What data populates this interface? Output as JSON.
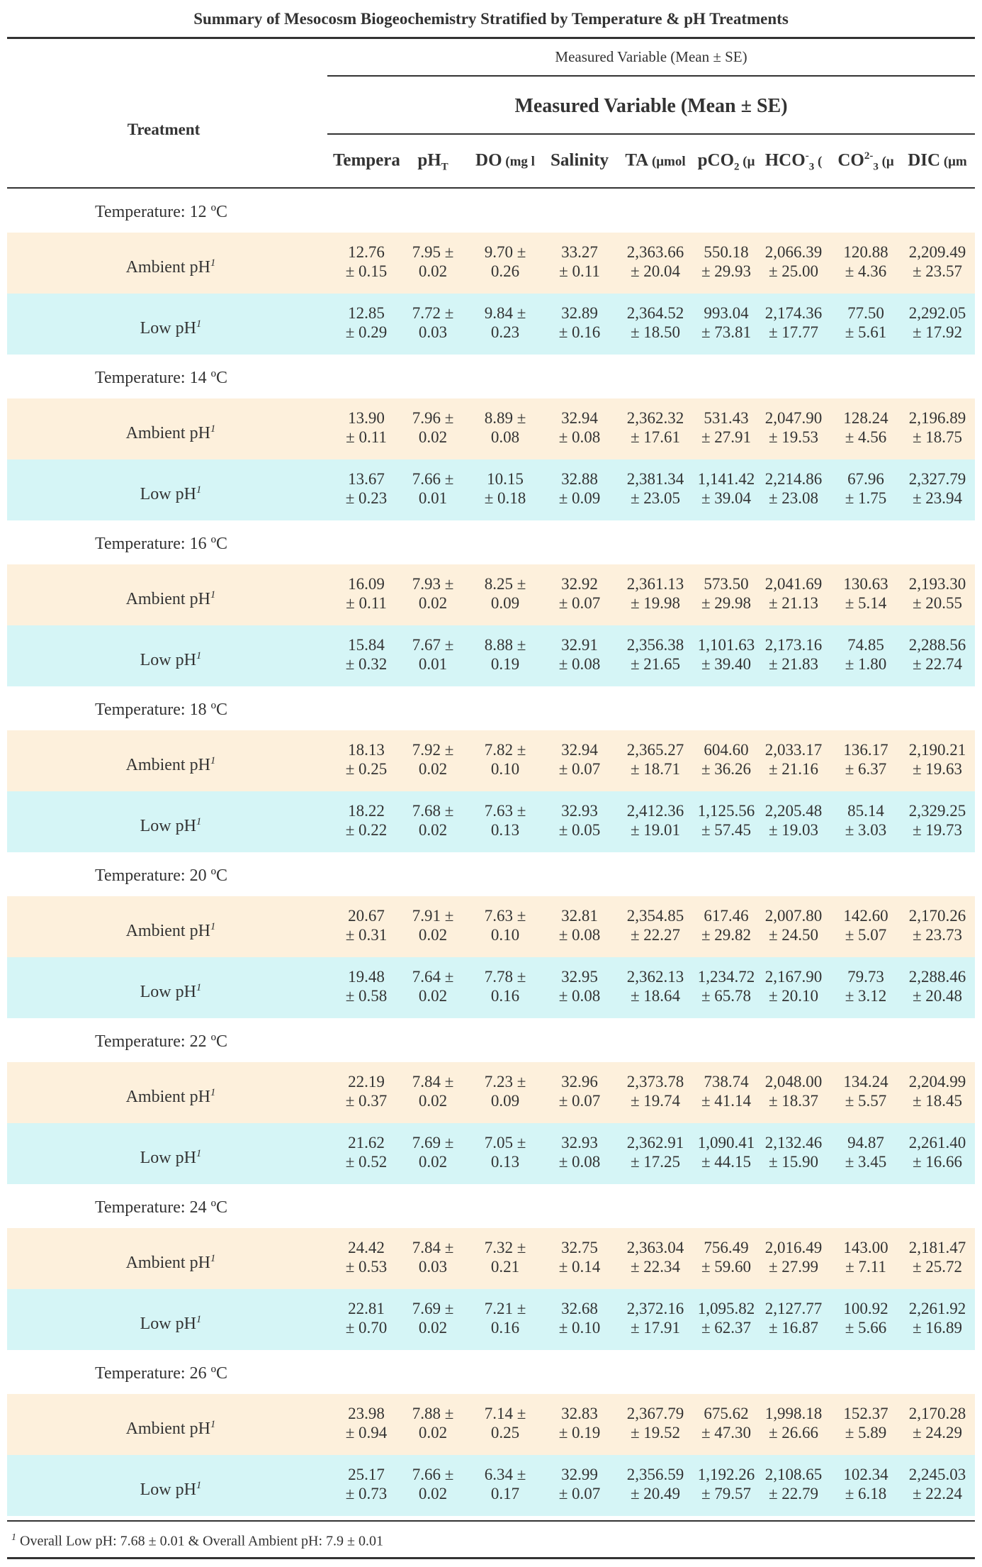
{
  "title": "Summary of Mesocosm Biogeochemistry Stratified by Temperature & pH Treatments",
  "header": {
    "treatment_label": "Treatment",
    "span_small": "Measured Variable (Mean ± SE)",
    "span_large": "Measured Variable (Mean ± SE)",
    "columns": [
      {
        "main": "Tempera",
        "sub": "",
        "sup": "",
        "unit": ""
      },
      {
        "main": "pH",
        "sub": "T",
        "sup": "",
        "unit": ""
      },
      {
        "main": "DO",
        "sub": "",
        "sup": "",
        "unit": " (mg l"
      },
      {
        "main": "Salinity",
        "sub": "",
        "sup": "",
        "unit": ""
      },
      {
        "main": "TA",
        "sub": "",
        "sup": "",
        "unit": " (μmol"
      },
      {
        "main": "pCO",
        "sub": "2",
        "sup": "",
        "unit": " (μ"
      },
      {
        "main": "HCO",
        "sub": "3",
        "sup": "-",
        "unit": " ("
      },
      {
        "main": "CO",
        "sub": "3",
        "sup": "2-",
        "unit": " (μ"
      },
      {
        "main": "DIC",
        "sub": "",
        "sup": "",
        "unit": " (μm"
      }
    ]
  },
  "ph_marker": "1",
  "groups": [
    {
      "label": "Temperature: 12 ºC",
      "rows": [
        {
          "label": "Ambient pH",
          "type": "ambient",
          "cells": [
            [
              "12.76",
              "± 0.15"
            ],
            [
              "7.95 ±",
              "0.02"
            ],
            [
              "9.70 ±",
              "0.26"
            ],
            [
              "33.27",
              "± 0.11"
            ],
            [
              "2,363.66",
              "± 20.04"
            ],
            [
              "550.18",
              "± 29.93"
            ],
            [
              "2,066.39",
              "± 25.00"
            ],
            [
              "120.88",
              "± 4.36"
            ],
            [
              "2,209.49",
              "± 23.57"
            ]
          ]
        },
        {
          "label": "Low pH",
          "type": "low",
          "cells": [
            [
              "12.85",
              "± 0.29"
            ],
            [
              "7.72 ±",
              "0.03"
            ],
            [
              "9.84 ±",
              "0.23"
            ],
            [
              "32.89",
              "± 0.16"
            ],
            [
              "2,364.52",
              "± 18.50"
            ],
            [
              "993.04",
              "± 73.81"
            ],
            [
              "2,174.36",
              "± 17.77"
            ],
            [
              "77.50",
              "± 5.61"
            ],
            [
              "2,292.05",
              "± 17.92"
            ]
          ]
        }
      ]
    },
    {
      "label": "Temperature: 14 ºC",
      "rows": [
        {
          "label": "Ambient pH",
          "type": "ambient",
          "cells": [
            [
              "13.90",
              "± 0.11"
            ],
            [
              "7.96 ±",
              "0.02"
            ],
            [
              "8.89 ±",
              "0.08"
            ],
            [
              "32.94",
              "± 0.08"
            ],
            [
              "2,362.32",
              "± 17.61"
            ],
            [
              "531.43",
              "± 27.91"
            ],
            [
              "2,047.90",
              "± 19.53"
            ],
            [
              "128.24",
              "± 4.56"
            ],
            [
              "2,196.89",
              "± 18.75"
            ]
          ]
        },
        {
          "label": "Low pH",
          "type": "low",
          "cells": [
            [
              "13.67",
              "± 0.23"
            ],
            [
              "7.66 ±",
              "0.01"
            ],
            [
              "10.15",
              "± 0.18"
            ],
            [
              "32.88",
              "± 0.09"
            ],
            [
              "2,381.34",
              "± 23.05"
            ],
            [
              "1,141.42",
              "± 39.04"
            ],
            [
              "2,214.86",
              "± 23.08"
            ],
            [
              "67.96",
              "± 1.75"
            ],
            [
              "2,327.79",
              "± 23.94"
            ]
          ]
        }
      ]
    },
    {
      "label": "Temperature: 16 ºC",
      "rows": [
        {
          "label": "Ambient pH",
          "type": "ambient",
          "cells": [
            [
              "16.09",
              "± 0.11"
            ],
            [
              "7.93 ±",
              "0.02"
            ],
            [
              "8.25 ±",
              "0.09"
            ],
            [
              "32.92",
              "± 0.07"
            ],
            [
              "2,361.13",
              "± 19.98"
            ],
            [
              "573.50",
              "± 29.98"
            ],
            [
              "2,041.69",
              "± 21.13"
            ],
            [
              "130.63",
              "± 5.14"
            ],
            [
              "2,193.30",
              "± 20.55"
            ]
          ]
        },
        {
          "label": "Low pH",
          "type": "low",
          "cells": [
            [
              "15.84",
              "± 0.32"
            ],
            [
              "7.67 ±",
              "0.01"
            ],
            [
              "8.88 ±",
              "0.19"
            ],
            [
              "32.91",
              "± 0.08"
            ],
            [
              "2,356.38",
              "± 21.65"
            ],
            [
              "1,101.63",
              "± 39.40"
            ],
            [
              "2,173.16",
              "± 21.83"
            ],
            [
              "74.85",
              "± 1.80"
            ],
            [
              "2,288.56",
              "± 22.74"
            ]
          ]
        }
      ]
    },
    {
      "label": "Temperature: 18 ºC",
      "rows": [
        {
          "label": "Ambient pH",
          "type": "ambient",
          "cells": [
            [
              "18.13",
              "± 0.25"
            ],
            [
              "7.92 ±",
              "0.02"
            ],
            [
              "7.82 ±",
              "0.10"
            ],
            [
              "32.94",
              "± 0.07"
            ],
            [
              "2,365.27",
              "± 18.71"
            ],
            [
              "604.60",
              "± 36.26"
            ],
            [
              "2,033.17",
              "± 21.16"
            ],
            [
              "136.17",
              "± 6.37"
            ],
            [
              "2,190.21",
              "± 19.63"
            ]
          ]
        },
        {
          "label": "Low pH",
          "type": "low",
          "cells": [
            [
              "18.22",
              "± 0.22"
            ],
            [
              "7.68 ±",
              "0.02"
            ],
            [
              "7.63 ±",
              "0.13"
            ],
            [
              "32.93",
              "± 0.05"
            ],
            [
              "2,412.36",
              "± 19.01"
            ],
            [
              "1,125.56",
              "± 57.45"
            ],
            [
              "2,205.48",
              "± 19.03"
            ],
            [
              "85.14",
              "± 3.03"
            ],
            [
              "2,329.25",
              "± 19.73"
            ]
          ]
        }
      ]
    },
    {
      "label": "Temperature: 20 ºC",
      "rows": [
        {
          "label": "Ambient pH",
          "type": "ambient",
          "cells": [
            [
              "20.67",
              "± 0.31"
            ],
            [
              "7.91 ±",
              "0.02"
            ],
            [
              "7.63 ±",
              "0.10"
            ],
            [
              "32.81",
              "± 0.08"
            ],
            [
              "2,354.85",
              "± 22.27"
            ],
            [
              "617.46",
              "± 29.82"
            ],
            [
              "2,007.80",
              "± 24.50"
            ],
            [
              "142.60",
              "± 5.07"
            ],
            [
              "2,170.26",
              "± 23.73"
            ]
          ]
        },
        {
          "label": "Low pH",
          "type": "low",
          "cells": [
            [
              "19.48",
              "± 0.58"
            ],
            [
              "7.64 ±",
              "0.02"
            ],
            [
              "7.78 ±",
              "0.16"
            ],
            [
              "32.95",
              "± 0.08"
            ],
            [
              "2,362.13",
              "± 18.64"
            ],
            [
              "1,234.72",
              "± 65.78"
            ],
            [
              "2,167.90",
              "± 20.10"
            ],
            [
              "79.73",
              "± 3.12"
            ],
            [
              "2,288.46",
              "± 20.48"
            ]
          ]
        }
      ]
    },
    {
      "label": "Temperature: 22 ºC",
      "rows": [
        {
          "label": "Ambient pH",
          "type": "ambient",
          "cells": [
            [
              "22.19",
              "± 0.37"
            ],
            [
              "7.84 ±",
              "0.02"
            ],
            [
              "7.23 ±",
              "0.09"
            ],
            [
              "32.96",
              "± 0.07"
            ],
            [
              "2,373.78",
              "± 19.74"
            ],
            [
              "738.74",
              "± 41.14"
            ],
            [
              "2,048.00",
              "± 18.37"
            ],
            [
              "134.24",
              "± 5.57"
            ],
            [
              "2,204.99",
              "± 18.45"
            ]
          ]
        },
        {
          "label": "Low pH",
          "type": "low",
          "cells": [
            [
              "21.62",
              "± 0.52"
            ],
            [
              "7.69 ±",
              "0.02"
            ],
            [
              "7.05 ±",
              "0.13"
            ],
            [
              "32.93",
              "± 0.08"
            ],
            [
              "2,362.91",
              "± 17.25"
            ],
            [
              "1,090.41",
              "± 44.15"
            ],
            [
              "2,132.46",
              "± 15.90"
            ],
            [
              "94.87",
              "± 3.45"
            ],
            [
              "2,261.40",
              "± 16.66"
            ]
          ]
        }
      ]
    },
    {
      "label": "Temperature: 24 ºC",
      "rows": [
        {
          "label": "Ambient pH",
          "type": "ambient",
          "cells": [
            [
              "24.42",
              "± 0.53"
            ],
            [
              "7.84 ±",
              "0.03"
            ],
            [
              "7.32 ±",
              "0.21"
            ],
            [
              "32.75",
              "± 0.14"
            ],
            [
              "2,363.04",
              "± 22.34"
            ],
            [
              "756.49",
              "± 59.60"
            ],
            [
              "2,016.49",
              "± 27.99"
            ],
            [
              "143.00",
              "± 7.11"
            ],
            [
              "2,181.47",
              "± 25.72"
            ]
          ]
        },
        {
          "label": "Low pH",
          "type": "low",
          "cells": [
            [
              "22.81",
              "± 0.70"
            ],
            [
              "7.69 ±",
              "0.02"
            ],
            [
              "7.21 ±",
              "0.16"
            ],
            [
              "32.68",
              "± 0.10"
            ],
            [
              "2,372.16",
              "± 17.91"
            ],
            [
              "1,095.82",
              "± 62.37"
            ],
            [
              "2,127.77",
              "± 16.87"
            ],
            [
              "100.92",
              "± 5.66"
            ],
            [
              "2,261.92",
              "± 16.89"
            ]
          ]
        }
      ]
    },
    {
      "label": "Temperature: 26 ºC",
      "rows": [
        {
          "label": "Ambient pH",
          "type": "ambient",
          "cells": [
            [
              "23.98",
              "± 0.94"
            ],
            [
              "7.88 ±",
              "0.02"
            ],
            [
              "7.14 ±",
              "0.25"
            ],
            [
              "32.83",
              "± 0.19"
            ],
            [
              "2,367.79",
              "± 19.52"
            ],
            [
              "675.62",
              "± 47.30"
            ],
            [
              "1,998.18",
              "± 26.66"
            ],
            [
              "152.37",
              "± 5.89"
            ],
            [
              "2,170.28",
              "± 24.29"
            ]
          ]
        },
        {
          "label": "Low pH",
          "type": "low",
          "cells": [
            [
              "25.17",
              "± 0.73"
            ],
            [
              "7.66 ±",
              "0.02"
            ],
            [
              "6.34 ±",
              "0.17"
            ],
            [
              "32.99",
              "± 0.07"
            ],
            [
              "2,356.59",
              "± 20.49"
            ],
            [
              "1,192.26",
              "± 79.57"
            ],
            [
              "2,108.65",
              "± 22.79"
            ],
            [
              "102.34",
              "± 6.18"
            ],
            [
              "2,245.03",
              "± 22.24"
            ]
          ]
        }
      ]
    }
  ],
  "footnote": {
    "marker": "1",
    "text": " Overall Low pH: 7.68 ± 0.01 & Overall Ambient pH: 7.9 ± 0.01"
  }
}
